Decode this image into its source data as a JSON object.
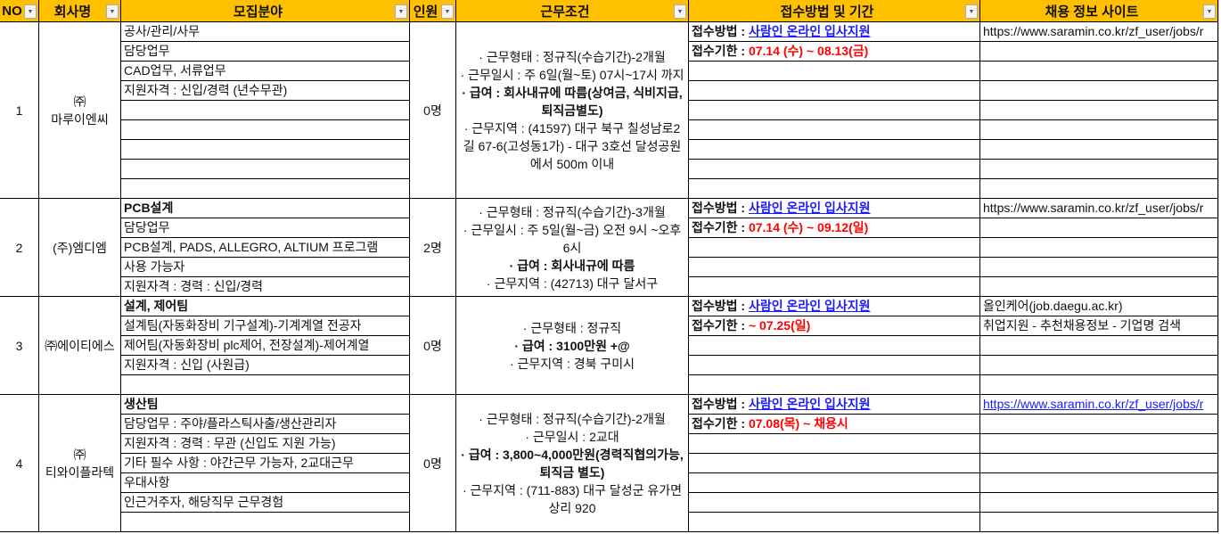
{
  "headers": [
    "NO",
    "회사명",
    "모집분야",
    "인원",
    "근무조건",
    "접수방법 및 기간",
    "채용 정보 사이트"
  ],
  "colors": {
    "header_bg": "#FFC000",
    "method_value": "#1a1aff",
    "deadline_value": "#ff0000"
  },
  "icons": {
    "filter_dropdown": "chevron-down-icon"
  },
  "rows": [
    {
      "no": "1",
      "company": "㈜\n마루이엔씨",
      "fields": [
        {
          "text": "공사/관리/사무",
          "bold": false
        },
        {
          "text": "담당업무",
          "bold": false
        },
        {
          "text": "CAD업무, 서류업무",
          "bold": false
        },
        {
          "text": "지원자격 : 신입/경력 (년수무관)",
          "bold": false
        },
        {
          "text": "",
          "bold": false
        },
        {
          "text": "",
          "bold": false
        },
        {
          "text": "",
          "bold": false
        },
        {
          "text": "",
          "bold": false
        },
        {
          "text": "",
          "bold": false
        }
      ],
      "count": "0명",
      "conditions": [
        {
          "text": "·  근무형태 : 정규직(수습기간)-2개월",
          "bold": false
        },
        {
          "text": "·  근무일시 : 주 6일(월~토) 07시~17시 까지",
          "bold": false
        },
        {
          "text": "·  급여 : 회사내규에 따름(상여금, 식비지급, 퇴직금별도)",
          "bold": true
        },
        {
          "text": "·  근무지역 : (41597) 대구 북구 칠성남로2길 67-6(고성동1가) - 대구 3호선 달성공원 에서 500m 이내",
          "bold": false
        }
      ],
      "method_label": "접수방법 : ",
      "method_value": "사람인 온라인 입사지원",
      "deadline_label": "접수기한 : ",
      "deadline_value": " 07.14 (수) ~ 08.13(금)",
      "sites": [
        {
          "text": "https://www.saramin.co.kr/zf_user/jobs/r",
          "link": false
        }
      ]
    },
    {
      "no": "2",
      "company": "(주)엠디엠",
      "fields": [
        {
          "text": "PCB설계",
          "bold": true
        },
        {
          "text": "담당업무",
          "bold": false
        },
        {
          "text": "PCB설계, PADS, ALLEGRO, ALTIUM 프로그램",
          "bold": false
        },
        {
          "text": "사용 가능자",
          "bold": false
        },
        {
          "text": "지원자격 : 경력 : 신입/경력",
          "bold": false
        }
      ],
      "count": "2명",
      "conditions": [
        {
          "text": "·  근무형태 : 정규직(수습기간)-3개월",
          "bold": false
        },
        {
          "text": "·  근무일시 : 주 5일(월~금) 오전 9시 ~오후 6시",
          "bold": false
        },
        {
          "text": "·  급여 : 회사내규에 따름",
          "bold": true
        },
        {
          "text": "·  근무지역 : (42713) 대구 달서구",
          "bold": false
        }
      ],
      "method_label": "접수방법 : ",
      "method_value": "사람인 온라인 입사지원",
      "deadline_label": "접수기한 : ",
      "deadline_value": " 07.14 (수) ~ 09.12(일)",
      "sites": [
        {
          "text": "https://www.saramin.co.kr/zf_user/jobs/r",
          "link": false
        }
      ]
    },
    {
      "no": "3",
      "company": "㈜에이티에스",
      "fields": [
        {
          "text": "설계, 제어팀",
          "bold": true
        },
        {
          "text": "설계팀(자동화장비 기구설계)-기계계열 전공자",
          "bold": false
        },
        {
          "text": "제어팀(자동화장비 plc제어, 전장설계)-제어계열",
          "bold": false
        },
        {
          "text": "지원자격 : 신입 (사원급)",
          "bold": false
        },
        {
          "text": "",
          "bold": false
        }
      ],
      "count": "0명",
      "conditions": [
        {
          "text": "·  근무형태 : 정규직",
          "bold": false
        },
        {
          "text": "·  급여 : 3100만원 +@",
          "bold": true
        },
        {
          "text": "·  근무지역 : 경북 구미시",
          "bold": false
        }
      ],
      "method_label": "접수방법 : ",
      "method_value": "사람인 온라인 입사지원",
      "deadline_label": "접수기한 : ",
      "deadline_value": "~ 07.25(일)",
      "sites": [
        {
          "text": "올인케어(job.daegu.ac.kr)",
          "link": false
        },
        {
          "text": "취업지원 - 추천채용정보 - 기업명 검색",
          "link": false
        }
      ]
    },
    {
      "no": "4",
      "company": "㈜\n티와이플라텍",
      "fields": [
        {
          "text": "생산팀",
          "bold": true
        },
        {
          "text": "담당업무 : 주야/플라스틱사출/생산관리자",
          "bold": false
        },
        {
          "text": "지원자격 : 경력 : 무관 (신입도 지원 가능)",
          "bold": false
        },
        {
          "text": "기타 필수 사항 : 야간근무 가능자, 2교대근무",
          "bold": false
        },
        {
          "text": "우대사항",
          "bold": false
        },
        {
          "text": "인근거주자, 해당직무 근무경험",
          "bold": false
        },
        {
          "text": "",
          "bold": false
        }
      ],
      "count": "0명",
      "conditions": [
        {
          "text": "·  근무형태 : 정규직(수습기간)-2개월",
          "bold": false
        },
        {
          "text": "·  근무일시 : 2교대",
          "bold": false
        },
        {
          "text": "·  급여 : 3,800~4,000만원(경력직협의가능, 퇴직금 별도)",
          "bold": true
        },
        {
          "text": "·  근무지역 : (711-883) 대구 달성군 유가면 상리 920",
          "bold": false
        }
      ],
      "method_label": "접수방법 : ",
      "method_value": "사람인 온라인 입사지원",
      "deadline_label": "접수기한 : ",
      "deadline_value": "07.08(목) ~ 채용시",
      "sites": [
        {
          "text": "https://www.saramin.co.kr/zf_user/jobs/r",
          "link": true
        }
      ]
    }
  ]
}
